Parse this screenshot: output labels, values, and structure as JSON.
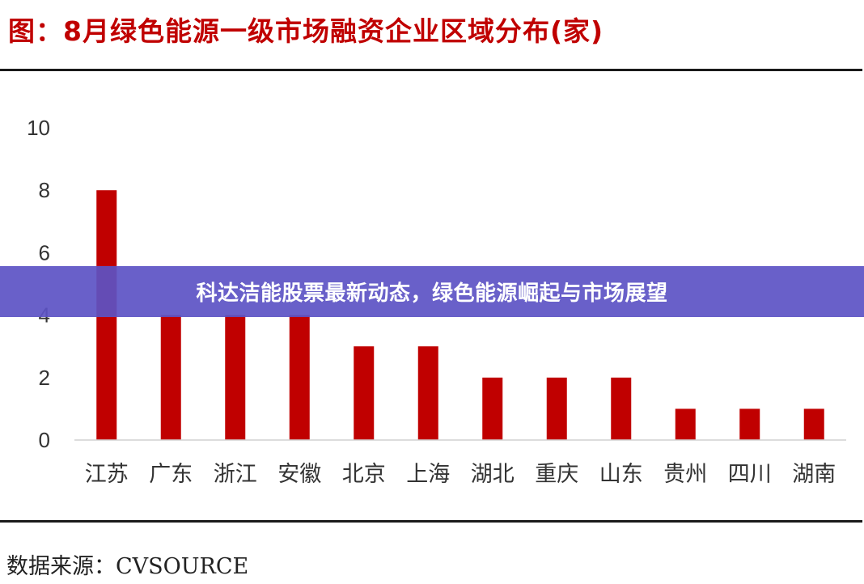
{
  "figure": {
    "title": "图：8月绿色能源一级市场融资企业区域分布(家)",
    "source": "数据来源：CVSOURCE"
  },
  "banner": {
    "text": "科达洁能股票最新动态，绿色能源崛起与市场展望"
  },
  "colors": {
    "bar": "#c00000",
    "title": "#c00000",
    "banner": "#5c52c4"
  },
  "chart_data": {
    "type": "bar",
    "title": "图：8月绿色能源一级市场融资企业区域分布(家)",
    "xlabel": "",
    "ylabel": "",
    "categories": [
      "江苏",
      "广东",
      "浙江",
      "安徽",
      "北京",
      "上海",
      "湖北",
      "重庆",
      "山东",
      "贵州",
      "四川",
      "湖南"
    ],
    "values": [
      8,
      4,
      4,
      4,
      3,
      3,
      2,
      2,
      2,
      1,
      1,
      1
    ],
    "ylim": [
      0,
      10
    ],
    "yticks": [
      0,
      2,
      4,
      6,
      8,
      10
    ],
    "grid": false,
    "legend": "none"
  }
}
